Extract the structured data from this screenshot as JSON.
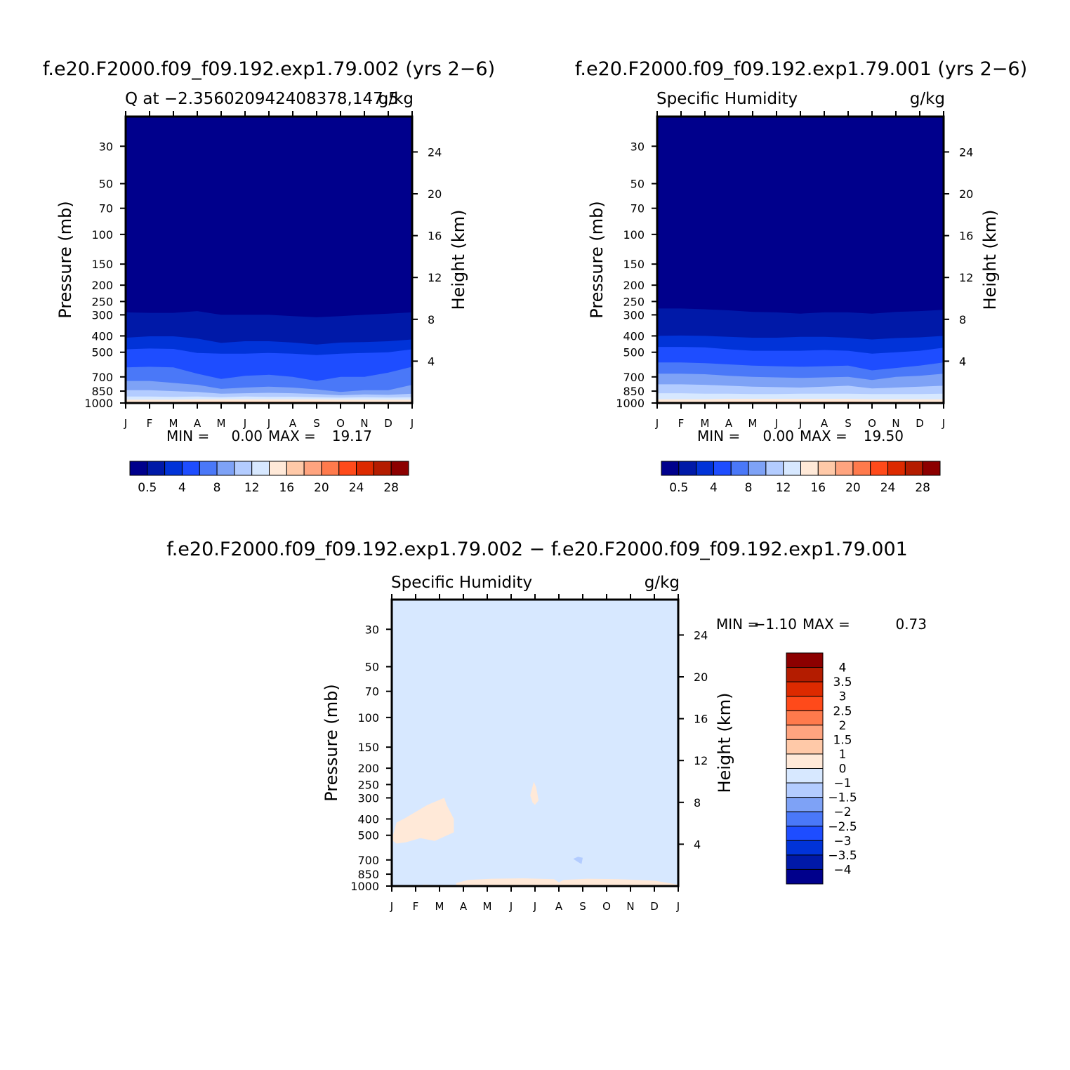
{
  "figure": {
    "top_left_title": "f.e20.F2000.f09_f09.192.exp1.79.002 (yrs 2−6)",
    "top_right_title": "f.e20.F2000.f09_f09.192.exp1.79.001 (yrs 2−6)",
    "bottom_title": "f.e20.F2000.f09_f09.192.exp1.79.002 − f.e20.F2000.f09_f09.192.exp1.79.001"
  },
  "colors": {
    "abs_levels": [
      "#00008c",
      "#0019a8",
      "#0133d8",
      "#1e4dff",
      "#4a78f8",
      "#7ea2f6",
      "#b3ccff",
      "#d7e8ff",
      "#ffe9d8",
      "#ffc9a8",
      "#ffa47f",
      "#ff7a4c",
      "#ff4a1a",
      "#dd2a00",
      "#b41c00",
      "#8c0000"
    ],
    "diff_levels": [
      "#00008c",
      "#0019a8",
      "#0133d8",
      "#1e4dff",
      "#4a78f8",
      "#7ea2f6",
      "#b3ccff",
      "#d7e8ff",
      "#ffe9d8",
      "#ffc9a8",
      "#ffa47f",
      "#ff7a4c",
      "#ff4a1a",
      "#dd2a00",
      "#b41c00",
      "#8c0000"
    ]
  },
  "chart_data": [
    {
      "id": "panel_top_left",
      "type": "heatmap",
      "title_left": "Q at −2.356020942408378,147.5",
      "title_right": "g/kg",
      "xlabel": "",
      "ylabel": "Pressure (mb)",
      "ylabel_right": "Height (km)",
      "x_ticks": [
        "J",
        "F",
        "M",
        "A",
        "M",
        "J",
        "J",
        "A",
        "S",
        "O",
        "N",
        "D",
        "J"
      ],
      "y_ticks": [
        30,
        50,
        70,
        100,
        150,
        200,
        250,
        300,
        400,
        500,
        700,
        850,
        1000
      ],
      "y_range_mb": [
        20,
        1000
      ],
      "y_scale": "log",
      "height_ticks_km": [
        4,
        8,
        12,
        16,
        20,
        24
      ],
      "stats": {
        "min_label": "MIN =",
        "min": "0.00",
        "max_label": "MAX =",
        "max": "19.17"
      },
      "colorbar_labels": [
        "0.5",
        "4",
        "8",
        "12",
        "16",
        "20",
        "24",
        "28"
      ],
      "contour_boundaries_mb": [
        {
          "level": "0.5",
          "values": [
            290,
            292,
            292,
            285,
            300,
            300,
            300,
            305,
            310,
            305,
            300,
            295,
            290
          ]
        },
        {
          "level": "1",
          "values": [
            410,
            402,
            402,
            415,
            440,
            430,
            430,
            438,
            450,
            438,
            435,
            430,
            420
          ]
        },
        {
          "level": "4",
          "values": [
            480,
            475,
            478,
            505,
            510,
            510,
            505,
            510,
            520,
            510,
            505,
            500,
            480
          ]
        },
        {
          "level": "8",
          "values": [
            615,
            610,
            615,
            670,
            720,
            690,
            680,
            700,
            740,
            700,
            700,
            660,
            610
          ]
        },
        {
          "level": "10",
          "values": [
            740,
            740,
            760,
            780,
            825,
            810,
            800,
            810,
            830,
            860,
            840,
            840,
            780
          ]
        },
        {
          "level": "12",
          "values": [
            840,
            840,
            850,
            860,
            880,
            875,
            870,
            875,
            885,
            900,
            890,
            895,
            880
          ]
        },
        {
          "level": "14",
          "values": [
            915,
            915,
            920,
            915,
            925,
            915,
            920,
            918,
            925,
            930,
            925,
            928,
            925
          ]
        },
        {
          "level": "16",
          "values": [
            955,
            955,
            955,
            950,
            950,
            950,
            950,
            950,
            950,
            955,
            955,
            955,
            955
          ]
        },
        {
          "level": "18",
          "values": [
            985,
            985,
            985,
            980,
            978,
            978,
            978,
            978,
            978,
            982,
            985,
            985,
            985
          ]
        }
      ],
      "x_range": [
        0,
        12
      ]
    },
    {
      "id": "panel_top_right",
      "type": "heatmap",
      "title_left": "Specific Humidity",
      "title_right": "g/kg",
      "xlabel": "",
      "ylabel": "Pressure (mb)",
      "ylabel_right": "Height (km)",
      "x_ticks": [
        "J",
        "F",
        "M",
        "A",
        "M",
        "J",
        "J",
        "A",
        "S",
        "O",
        "N",
        "D",
        "J"
      ],
      "y_ticks": [
        30,
        50,
        70,
        100,
        150,
        200,
        250,
        300,
        400,
        500,
        700,
        850,
        1000
      ],
      "y_range_mb": [
        20,
        1000
      ],
      "y_scale": "log",
      "height_ticks_km": [
        4,
        8,
        12,
        16,
        20,
        24
      ],
      "stats": {
        "min_label": "MIN =",
        "min": "0.00",
        "max_label": "MAX =",
        "max": "19.50"
      },
      "colorbar_labels": [
        "0.5",
        "4",
        "8",
        "12",
        "16",
        "20",
        "24",
        "28"
      ],
      "contour_boundaries_mb": [
        {
          "level": "0.5",
          "values": [
            275,
            275,
            278,
            282,
            288,
            290,
            295,
            290,
            290,
            295,
            288,
            285,
            280
          ]
        },
        {
          "level": "1",
          "values": [
            400,
            398,
            400,
            405,
            410,
            410,
            405,
            405,
            410,
            420,
            412,
            408,
            400
          ]
        },
        {
          "level": "4",
          "values": [
            465,
            465,
            468,
            480,
            490,
            490,
            490,
            485,
            490,
            510,
            500,
            490,
            470
          ]
        },
        {
          "level": "8",
          "values": [
            575,
            575,
            580,
            590,
            600,
            605,
            610,
            605,
            600,
            640,
            620,
            600,
            575
          ]
        },
        {
          "level": "10",
          "values": [
            670,
            670,
            675,
            690,
            700,
            705,
            710,
            705,
            700,
            730,
            700,
            690,
            670
          ]
        },
        {
          "level": "12",
          "values": [
            775,
            775,
            780,
            790,
            800,
            805,
            810,
            800,
            790,
            820,
            810,
            800,
            790
          ]
        },
        {
          "level": "14",
          "values": [
            875,
            875,
            880,
            880,
            885,
            885,
            880,
            880,
            880,
            885,
            885,
            885,
            880
          ]
        },
        {
          "level": "16",
          "values": [
            950,
            950,
            950,
            945,
            945,
            945,
            945,
            945,
            945,
            950,
            950,
            950,
            950
          ]
        },
        {
          "level": "18",
          "values": [
            985,
            985,
            985,
            980,
            978,
            978,
            978,
            978,
            978,
            982,
            985,
            985,
            985
          ]
        }
      ],
      "x_range": [
        0,
        12
      ]
    },
    {
      "id": "panel_bottom",
      "type": "heatmap",
      "title_left": "Specific Humidity",
      "title_right": "g/kg",
      "xlabel": "",
      "ylabel": "Pressure (mb)",
      "ylabel_right": "Height (km)",
      "x_ticks": [
        "J",
        "F",
        "M",
        "A",
        "M",
        "J",
        "J",
        "A",
        "S",
        "O",
        "N",
        "D",
        "J"
      ],
      "y_ticks": [
        30,
        50,
        70,
        100,
        150,
        200,
        250,
        300,
        400,
        500,
        700,
        850,
        1000
      ],
      "y_range_mb": [
        20,
        1000
      ],
      "y_scale": "log",
      "height_ticks_km": [
        4,
        8,
        12,
        16,
        20,
        24
      ],
      "stats": {
        "min_label": "MIN =",
        "min": "−1.10",
        "max_label": "MAX =",
        "max": "0.73"
      },
      "background_level": "0 to −1",
      "colorbar_labels": [
        "4",
        "3.5",
        "3",
        "2.5",
        "2",
        "1.5",
        "1",
        "0",
        "−1",
        "−1.5",
        "−2",
        "−2.5",
        "−3",
        "−3.5",
        "−4"
      ],
      "regions": [
        {
          "level": "0 to 1",
          "points": [
            [
              0.05,
              500
            ],
            [
              0.2,
              420
            ],
            [
              0.5,
              400
            ],
            [
              1.5,
              330
            ],
            [
              2.2,
              300
            ],
            [
              2.3,
              330
            ],
            [
              2.6,
              400
            ],
            [
              2.6,
              480
            ],
            [
              1.8,
              540
            ],
            [
              1.2,
              520
            ],
            [
              0.6,
              550
            ],
            [
              0.2,
              560
            ],
            [
              0.05,
              540
            ]
          ]
        },
        {
          "level": "0 to 1",
          "points": [
            [
              5.8,
              290
            ],
            [
              5.95,
              240
            ],
            [
              6.05,
              260
            ],
            [
              6.15,
              310
            ],
            [
              6.0,
              330
            ],
            [
              5.9,
              320
            ]
          ]
        },
        {
          "level": "−1 to −1.5",
          "points": [
            [
              7.6,
              690
            ],
            [
              7.8,
              670
            ],
            [
              8.0,
              680
            ],
            [
              7.95,
              740
            ],
            [
              7.8,
              720
            ]
          ]
        },
        {
          "level": "0 to 1",
          "points": [
            [
              2.7,
              960
            ],
            [
              3.2,
              920
            ],
            [
              4.2,
              905
            ],
            [
              5.5,
              900
            ],
            [
              6.8,
              910
            ],
            [
              7.0,
              950
            ],
            [
              7.2,
              920
            ],
            [
              8.2,
              905
            ],
            [
              9.5,
              910
            ],
            [
              11.0,
              930
            ],
            [
              12.0,
              980
            ],
            [
              12.0,
              1000
            ],
            [
              2.7,
              1000
            ]
          ]
        },
        {
          "level": "0 to 1",
          "points": [
            [
              1.0,
              995
            ],
            [
              1.4,
              980
            ],
            [
              1.8,
              990
            ],
            [
              1.8,
              1000
            ],
            [
              1.0,
              1000
            ]
          ]
        }
      ],
      "x_range": [
        0,
        12
      ]
    }
  ]
}
